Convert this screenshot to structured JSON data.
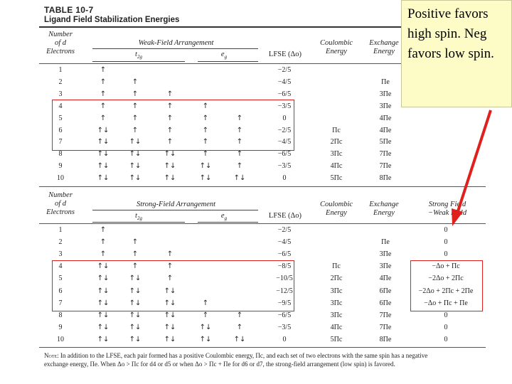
{
  "table": {
    "number": "TABLE 10-7",
    "title": "Ligand Field Stabilization Energies"
  },
  "weak": {
    "col_number": [
      "Number",
      "of d",
      "Electrons"
    ],
    "group_title": "Weak-Field Arrangement",
    "t2g": "t2g",
    "eg": "eg",
    "lfse": "LFSE (Δo)",
    "coulombic": [
      "Coulombic",
      "Energy"
    ],
    "exchange": [
      "Exchange",
      "Energy"
    ],
    "rows": [
      {
        "n": "1",
        "t2g": [
          "↑",
          "",
          ""
        ],
        "eg": [
          "",
          ""
        ],
        "lfse": "−2/5",
        "coul": "",
        "exch": ""
      },
      {
        "n": "2",
        "t2g": [
          "↑",
          "↑",
          ""
        ],
        "eg": [
          "",
          ""
        ],
        "lfse": "−4/5",
        "coul": "",
        "exch": "Πe"
      },
      {
        "n": "3",
        "t2g": [
          "↑",
          "↑",
          "↑"
        ],
        "eg": [
          "",
          ""
        ],
        "lfse": "−6/5",
        "coul": "",
        "exch": "3Πe"
      },
      {
        "n": "4",
        "t2g": [
          "↑",
          "↑",
          "↑"
        ],
        "eg": [
          "↑",
          ""
        ],
        "lfse": "−3/5",
        "coul": "",
        "exch": "3Πe"
      },
      {
        "n": "5",
        "t2g": [
          "↑",
          "↑",
          "↑"
        ],
        "eg": [
          "↑",
          "↑"
        ],
        "lfse": "0",
        "coul": "",
        "exch": "4Πe"
      },
      {
        "n": "6",
        "t2g": [
          "↑↓",
          "↑",
          "↑"
        ],
        "eg": [
          "↑",
          "↑"
        ],
        "lfse": "−2/5",
        "coul": "Πc",
        "exch": "4Πe"
      },
      {
        "n": "7",
        "t2g": [
          "↑↓",
          "↑↓",
          "↑"
        ],
        "eg": [
          "↑",
          "↑"
        ],
        "lfse": "−4/5",
        "coul": "2Πc",
        "exch": "5Πe"
      },
      {
        "n": "8",
        "t2g": [
          "↑↓",
          "↑↓",
          "↑↓"
        ],
        "eg": [
          "↑",
          "↑"
        ],
        "lfse": "−6/5",
        "coul": "3Πc",
        "exch": "7Πe"
      },
      {
        "n": "9",
        "t2g": [
          "↑↓",
          "↑↓",
          "↑↓"
        ],
        "eg": [
          "↑↓",
          "↑"
        ],
        "lfse": "−3/5",
        "coul": "4Πc",
        "exch": "7Πe"
      },
      {
        "n": "10",
        "t2g": [
          "↑↓",
          "↑↓",
          "↑↓"
        ],
        "eg": [
          "↑↓",
          "↑↓"
        ],
        "lfse": "0",
        "coul": "5Πc",
        "exch": "8Πe"
      }
    ]
  },
  "strong": {
    "col_number": [
      "Number",
      "of d",
      "Electrons"
    ],
    "group_title": "Strong-Field Arrangement",
    "t2g": "t2g",
    "eg": "eg",
    "lfse": "LFSE (Δo)",
    "coulombic": [
      "Coulombic",
      "Energy"
    ],
    "exchange": [
      "Exchange",
      "Energy"
    ],
    "diff": [
      "Strong Field",
      "−Weak Field"
    ],
    "rows": [
      {
        "n": "1",
        "t2g": [
          "↑",
          "",
          ""
        ],
        "eg": [
          "",
          ""
        ],
        "lfse": "−2/5",
        "coul": "",
        "exch": "",
        "diff": "0"
      },
      {
        "n": "2",
        "t2g": [
          "↑",
          "↑",
          ""
        ],
        "eg": [
          "",
          ""
        ],
        "lfse": "−4/5",
        "coul": "",
        "exch": "Πe",
        "diff": "0"
      },
      {
        "n": "3",
        "t2g": [
          "↑",
          "↑",
          "↑"
        ],
        "eg": [
          "",
          ""
        ],
        "lfse": "−6/5",
        "coul": "",
        "exch": "3Πe",
        "diff": "0"
      },
      {
        "n": "4",
        "t2g": [
          "↑↓",
          "↑",
          "↑"
        ],
        "eg": [
          "",
          ""
        ],
        "lfse": "−8/5",
        "coul": "Πc",
        "exch": "3Πe",
        "diff": "−Δo + Πc"
      },
      {
        "n": "5",
        "t2g": [
          "↑↓",
          "↑↓",
          "↑"
        ],
        "eg": [
          "",
          ""
        ],
        "lfse": "−10/5",
        "coul": "2Πc",
        "exch": "4Πe",
        "diff": "−2Δo + 2Πc"
      },
      {
        "n": "6",
        "t2g": [
          "↑↓",
          "↑↓",
          "↑↓"
        ],
        "eg": [
          "",
          ""
        ],
        "lfse": "−12/5",
        "coul": "3Πc",
        "exch": "6Πe",
        "diff": "−2Δo + 2Πc + 2Πe"
      },
      {
        "n": "7",
        "t2g": [
          "↑↓",
          "↑↓",
          "↑↓"
        ],
        "eg": [
          "↑",
          ""
        ],
        "lfse": "−9/5",
        "coul": "3Πc",
        "exch": "6Πe",
        "diff": "−Δo + Πc + Πe"
      },
      {
        "n": "8",
        "t2g": [
          "↑↓",
          "↑↓",
          "↑↓"
        ],
        "eg": [
          "↑",
          "↑"
        ],
        "lfse": "−6/5",
        "coul": "3Πc",
        "exch": "7Πe",
        "diff": "0"
      },
      {
        "n": "9",
        "t2g": [
          "↑↓",
          "↑↓",
          "↑↓"
        ],
        "eg": [
          "↑↓",
          "↑"
        ],
        "lfse": "−3/5",
        "coul": "4Πc",
        "exch": "7Πe",
        "diff": "0"
      },
      {
        "n": "10",
        "t2g": [
          "↑↓",
          "↑↓",
          "↑↓"
        ],
        "eg": [
          "↑↓",
          "↑↓"
        ],
        "lfse": "0",
        "coul": "5Πc",
        "exch": "8Πe",
        "diff": "0"
      }
    ]
  },
  "note": {
    "label": "Note:",
    "line1": "In addition to the LFSE, each pair formed has a positive Coulombic energy, Πc, and each set of two electrons with the same spin has a negative",
    "line2": "exchange energy, Πe. When Δo > Πc for d4 or d5 or when Δo > Πc + Πe for d6 or d7, the strong-field arrangement (low spin) is favored."
  },
  "callout": {
    "text": "Positive favors high spin. Neg favors low spin."
  },
  "colors": {
    "highlight_box": "#e0201c",
    "arrow": "#e0201c",
    "callout_bg": "#fdfcc6"
  }
}
